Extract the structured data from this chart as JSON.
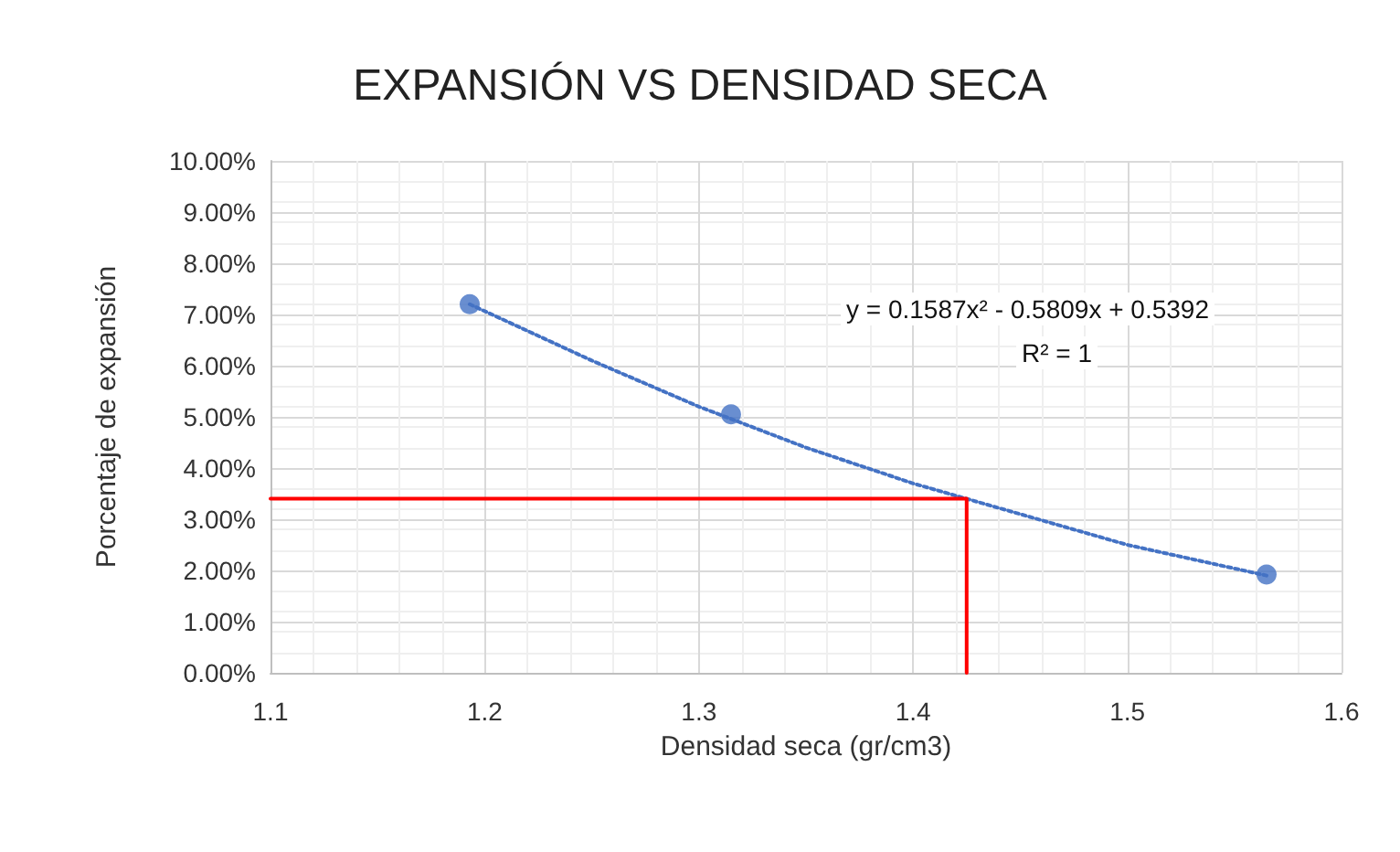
{
  "chart_data": {
    "type": "scatter",
    "title": "EXPANSIÓN VS DENSIDAD SECA",
    "xlabel": "Densidad seca (gr/cm3)",
    "ylabel": "Porcentaje de expansión",
    "annotations": [
      "y = 0.1587x² - 0.5809x + 0.5392",
      "R² = 1"
    ],
    "series": [
      {
        "color": "#4472c4",
        "x": [
          1.193,
          1.315,
          1.565
        ],
        "values": [
          7.2,
          5.05,
          1.92
        ],
        "marker": "circle"
      },
      {
        "type": "line",
        "color": "#4472c4",
        "line_style": "dotted",
        "marker": "none",
        "x": [
          1.193,
          1.25,
          1.3,
          1.35,
          1.4,
          1.45,
          1.5,
          1.565
        ],
        "values": [
          7.2,
          6.1,
          5.2,
          4.4,
          3.7,
          3.1,
          2.5,
          1.9
        ]
      },
      {
        "type": "line",
        "color": "#ff0000",
        "line_style": "solid",
        "marker": "none",
        "x": [
          1.1,
          1.425,
          1.425
        ],
        "values": [
          3.4,
          3.4,
          0
        ]
      }
    ],
    "xlim": [
      1.1,
      1.6
    ],
    "xticks": [
      1.1,
      1.2,
      1.3,
      1.4,
      1.5,
      1.6
    ],
    "ylim": [
      0,
      10
    ],
    "yticks": [
      {
        "value": 0,
        "label": "0.00%"
      },
      {
        "value": 1,
        "label": "1.00%"
      },
      {
        "value": 2,
        "label": "2.00%"
      },
      {
        "value": 3,
        "label": "3.00%"
      },
      {
        "value": 4,
        "label": "4.00%"
      },
      {
        "value": 5,
        "label": "5.00%"
      },
      {
        "value": 6,
        "label": "6.00%"
      },
      {
        "value": 7,
        "label": "7.00%"
      },
      {
        "value": 8,
        "label": "8.00%"
      },
      {
        "value": 9,
        "label": "9.00%"
      },
      {
        "value": 10,
        "label": "10.00%"
      }
    ],
    "grid": true
  }
}
